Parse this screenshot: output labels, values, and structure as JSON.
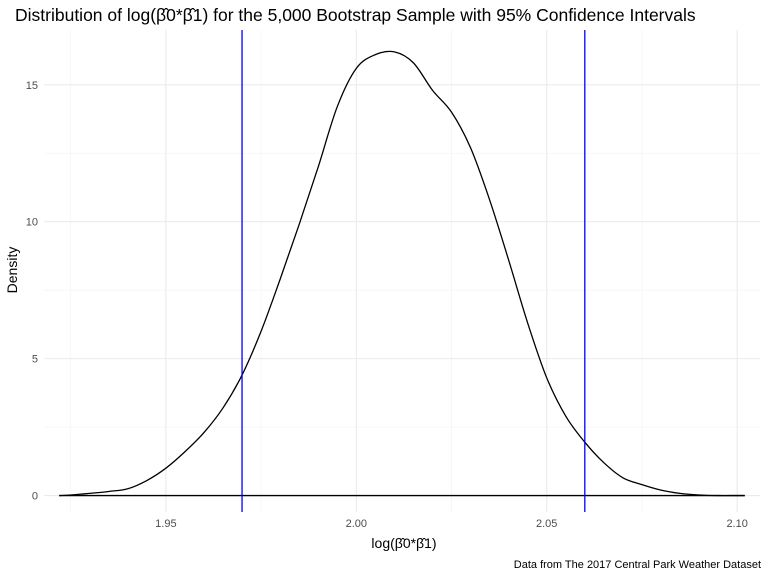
{
  "chart_data": {
    "type": "density",
    "title": "Distribution of log(β̂0*β̂1) for the 5,000 Bootstrap Sample with 95% Confidence Intervals",
    "xlabel": "log(β̂0*β̂1)",
    "ylabel": "Density",
    "caption": "Data from The 2017 Central Park Weather Dataset",
    "xlim": [
      1.918,
      2.106
    ],
    "ylim": [
      -0.6,
      17.0
    ],
    "x_ticks": [
      1.95,
      2.0,
      2.05,
      2.1
    ],
    "x_tick_labels": [
      "1.95",
      "2.00",
      "2.05",
      "2.10"
    ],
    "y_ticks": [
      0,
      5,
      10,
      15
    ],
    "y_tick_labels": [
      "0",
      "5",
      "10",
      "15"
    ],
    "grid": true,
    "colors": {
      "curve": "#000000",
      "ci_lines": "#0000ff",
      "grid_major": "#ebebeb",
      "grid_minor": "#f5f5f5"
    },
    "series": [
      {
        "x": [
          1.922,
          1.925,
          1.93,
          1.935,
          1.94,
          1.945,
          1.95,
          1.955,
          1.96,
          1.965,
          1.97,
          1.975,
          1.98,
          1.985,
          1.99,
          1.995,
          2.0,
          2.005,
          2.01,
          2.015,
          2.02,
          2.025,
          2.03,
          2.035,
          2.04,
          2.045,
          2.05,
          2.055,
          2.06,
          2.065,
          2.07,
          2.075,
          2.08,
          2.085,
          2.09,
          2.095,
          2.1,
          2.102
        ],
        "y": [
          0.0,
          0.02,
          0.08,
          0.15,
          0.25,
          0.55,
          1.0,
          1.6,
          2.3,
          3.2,
          4.4,
          6.0,
          7.9,
          9.9,
          12.0,
          14.2,
          15.6,
          16.1,
          16.2,
          15.8,
          14.8,
          14.0,
          12.7,
          10.8,
          8.6,
          6.3,
          4.3,
          2.9,
          1.95,
          1.2,
          0.65,
          0.4,
          0.2,
          0.08,
          0.02,
          0.0,
          0.0,
          0.0
        ]
      }
    ],
    "ci_lines_x": [
      1.97,
      2.06
    ]
  }
}
